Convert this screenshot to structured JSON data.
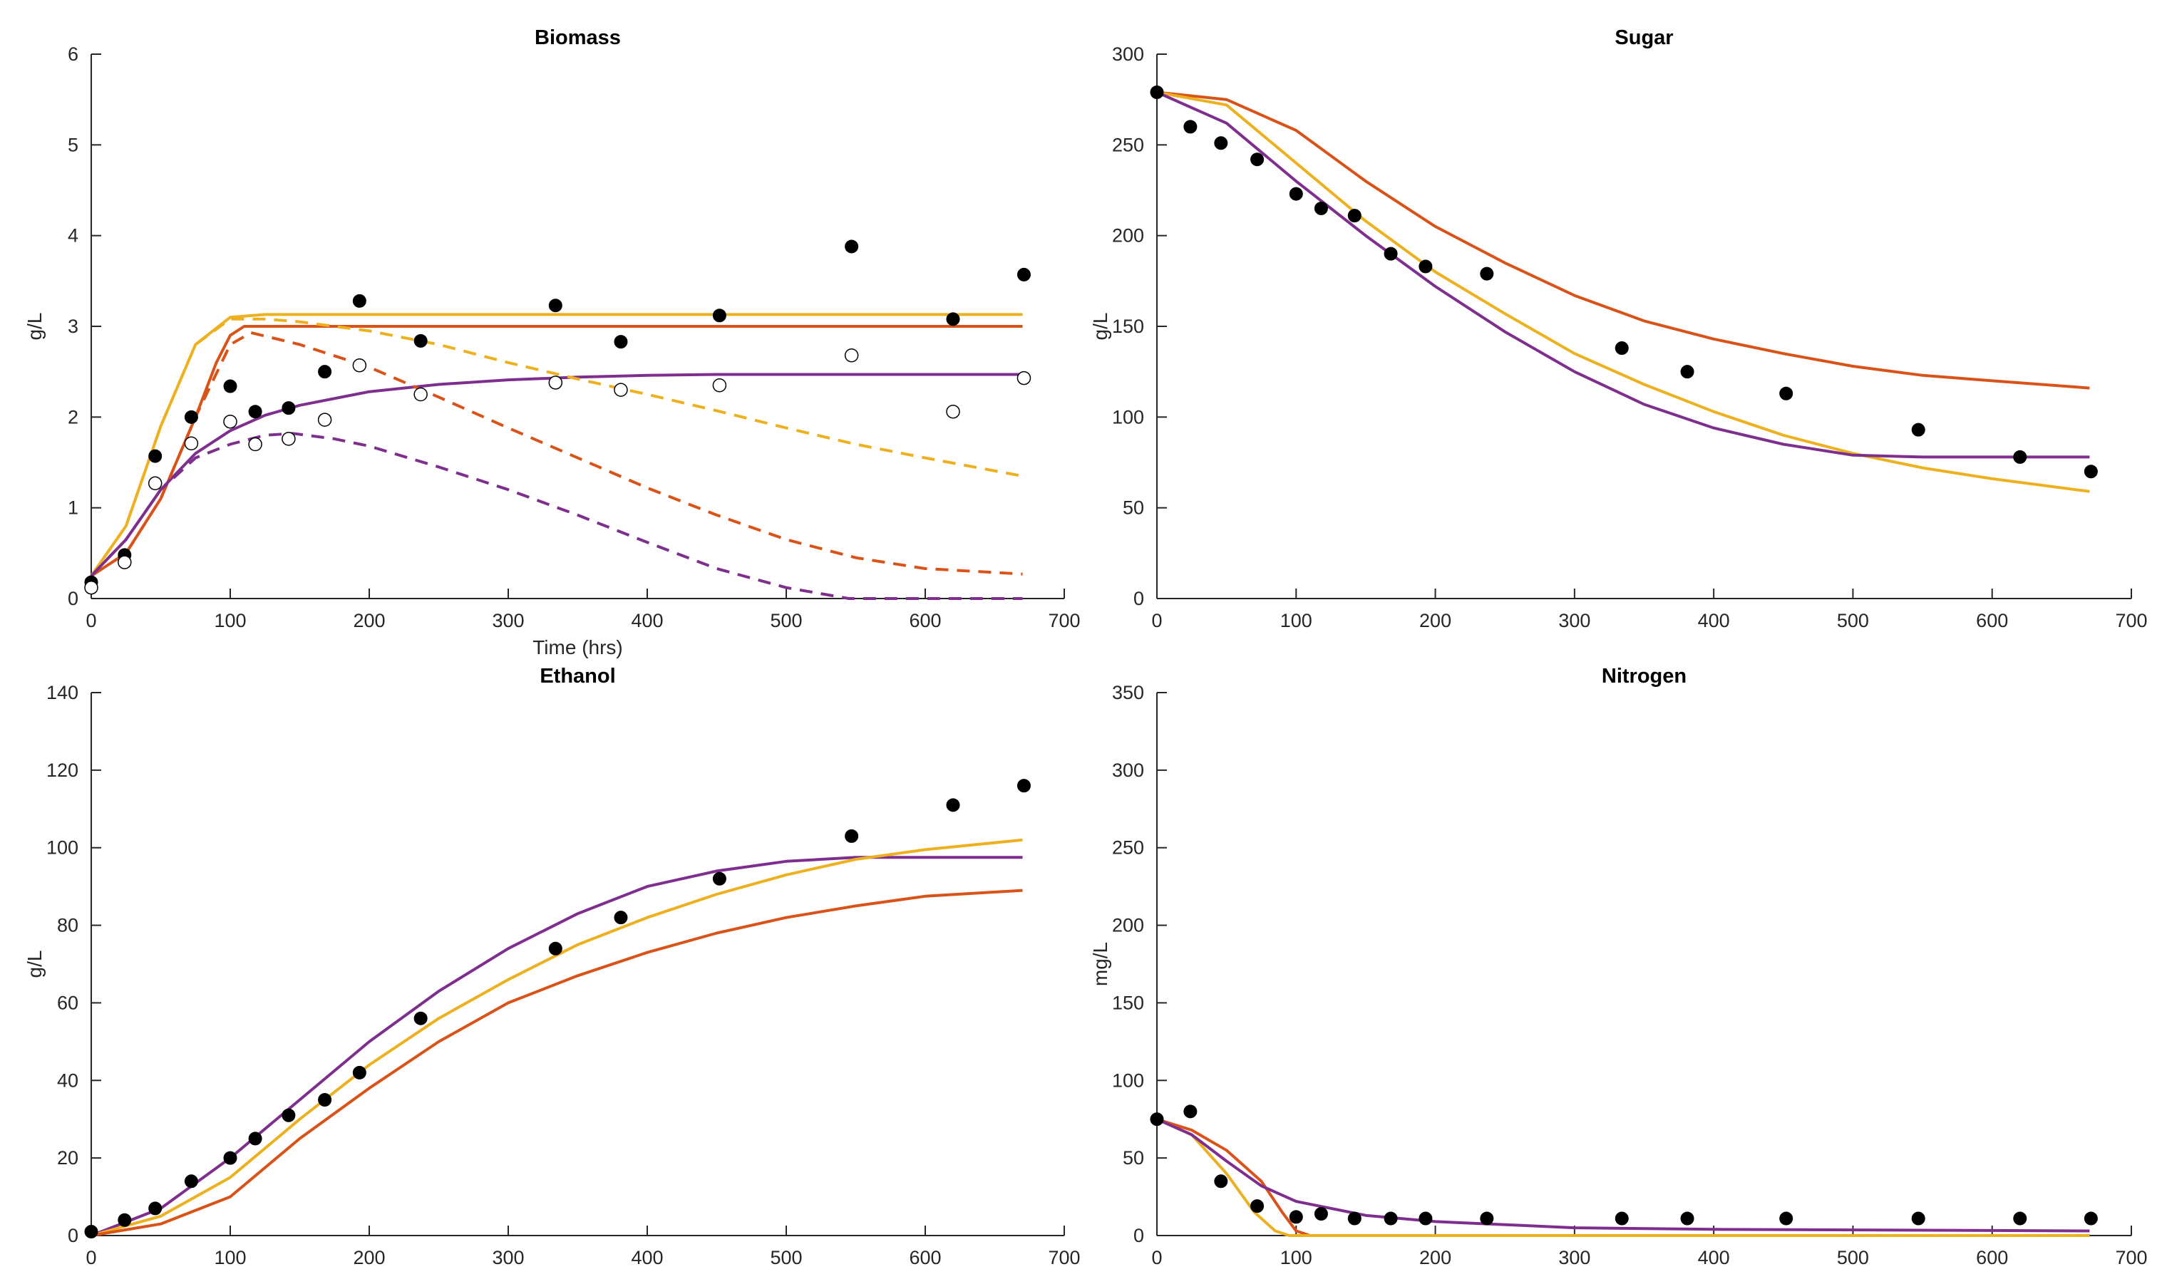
{
  "colors": {
    "yellow": "#EDB120",
    "orange": "#D95319",
    "purple": "#7E2F8E",
    "points": "#000000"
  },
  "chart_data": [
    {
      "type": "line",
      "title": "Biomass",
      "xlabel": "Time (hrs)",
      "ylabel": "g/L",
      "xlim": [
        0,
        700
      ],
      "ylim": [
        0,
        6
      ],
      "xticks": [
        0,
        100,
        200,
        300,
        400,
        500,
        600,
        700
      ],
      "yticks": [
        0,
        1,
        2,
        3,
        4,
        5,
        6
      ],
      "points": [
        {
          "name": "measured-filled",
          "filled": true,
          "x": [
            0,
            24,
            46,
            72,
            100,
            118,
            142,
            168,
            193,
            237,
            334,
            381,
            452,
            547,
            620,
            671
          ],
          "y": [
            0.18,
            0.48,
            1.57,
            2.0,
            2.34,
            2.06,
            2.1,
            2.5,
            3.28,
            2.84,
            3.23,
            2.83,
            3.12,
            3.88,
            3.08,
            3.57
          ]
        },
        {
          "name": "measured-open",
          "filled": false,
          "x": [
            0,
            24,
            46,
            72,
            100,
            118,
            142,
            168,
            193,
            237,
            334,
            381,
            452,
            547,
            620,
            671
          ],
          "y": [
            0.12,
            0.4,
            1.27,
            1.71,
            1.95,
            1.7,
            1.76,
            1.97,
            2.57,
            2.25,
            2.38,
            2.3,
            2.35,
            2.68,
            2.06,
            2.43
          ]
        }
      ],
      "series": [
        {
          "name": "yellow-solid",
          "color": "yellow",
          "dash": false,
          "x": [
            0,
            25,
            50,
            75,
            100,
            125,
            150,
            200,
            300,
            400,
            500,
            600,
            670
          ],
          "y": [
            0.25,
            0.8,
            1.9,
            2.8,
            3.1,
            3.13,
            3.13,
            3.13,
            3.13,
            3.13,
            3.13,
            3.13,
            3.13
          ]
        },
        {
          "name": "orange-solid",
          "color": "orange",
          "dash": false,
          "x": [
            0,
            25,
            50,
            75,
            90,
            100,
            110,
            125,
            150,
            200,
            300,
            400,
            500,
            600,
            670
          ],
          "y": [
            0.25,
            0.5,
            1.1,
            2.0,
            2.6,
            2.9,
            3.0,
            3.0,
            3.0,
            3.0,
            3.0,
            3.0,
            3.0,
            3.0,
            3.0
          ]
        },
        {
          "name": "purple-solid",
          "color": "purple",
          "dash": false,
          "x": [
            0,
            25,
            50,
            75,
            100,
            125,
            150,
            200,
            250,
            300,
            350,
            400,
            450,
            500,
            550,
            600,
            670
          ],
          "y": [
            0.25,
            0.65,
            1.2,
            1.6,
            1.85,
            2.02,
            2.13,
            2.28,
            2.36,
            2.41,
            2.44,
            2.46,
            2.47,
            2.47,
            2.47,
            2.47,
            2.47
          ]
        },
        {
          "name": "yellow-dashed",
          "color": "yellow",
          "dash": true,
          "x": [
            0,
            25,
            50,
            75,
            100,
            125,
            150,
            200,
            250,
            300,
            350,
            400,
            450,
            500,
            550,
            600,
            670
          ],
          "y": [
            0.25,
            0.8,
            1.9,
            2.8,
            3.08,
            3.08,
            3.05,
            2.95,
            2.8,
            2.6,
            2.42,
            2.25,
            2.07,
            1.88,
            1.7,
            1.55,
            1.35
          ]
        },
        {
          "name": "orange-dashed",
          "color": "orange",
          "dash": true,
          "x": [
            0,
            25,
            50,
            75,
            100,
            115,
            150,
            200,
            250,
            300,
            350,
            400,
            450,
            500,
            550,
            600,
            670
          ],
          "y": [
            0.25,
            0.5,
            1.1,
            2.0,
            2.8,
            2.93,
            2.8,
            2.55,
            2.22,
            1.88,
            1.55,
            1.22,
            0.92,
            0.65,
            0.45,
            0.33,
            0.27
          ]
        },
        {
          "name": "purple-dashed",
          "color": "purple",
          "dash": true,
          "x": [
            0,
            25,
            50,
            75,
            100,
            125,
            145,
            175,
            200,
            250,
            300,
            350,
            400,
            450,
            500,
            545,
            600,
            670
          ],
          "y": [
            0.25,
            0.65,
            1.2,
            1.55,
            1.7,
            1.8,
            1.82,
            1.76,
            1.68,
            1.45,
            1.2,
            0.92,
            0.62,
            0.33,
            0.12,
            0,
            0,
            0
          ]
        }
      ]
    },
    {
      "type": "line",
      "title": "Sugar",
      "xlabel": "",
      "ylabel": "g/L",
      "xlim": [
        0,
        700
      ],
      "ylim": [
        0,
        300
      ],
      "xticks": [
        0,
        100,
        200,
        300,
        400,
        500,
        600,
        700
      ],
      "yticks": [
        0,
        50,
        100,
        150,
        200,
        250,
        300
      ],
      "points": [
        {
          "name": "measured-filled",
          "filled": true,
          "x": [
            0,
            24,
            46,
            72,
            100,
            118,
            142,
            168,
            193,
            237,
            334,
            381,
            452,
            547,
            620,
            671
          ],
          "y": [
            279,
            260,
            251,
            242,
            223,
            215,
            211,
            190,
            183,
            179,
            138,
            125,
            113,
            93,
            78,
            70
          ]
        }
      ],
      "series": [
        {
          "name": "orange-solid",
          "color": "orange",
          "dash": false,
          "x": [
            0,
            50,
            100,
            150,
            200,
            250,
            300,
            350,
            400,
            450,
            500,
            550,
            600,
            670
          ],
          "y": [
            279,
            275,
            258,
            230,
            205,
            185,
            167,
            153,
            143,
            135,
            128,
            123,
            120,
            116
          ]
        },
        {
          "name": "yellow-solid",
          "color": "yellow",
          "dash": false,
          "x": [
            0,
            50,
            100,
            150,
            200,
            250,
            300,
            350,
            400,
            450,
            500,
            550,
            600,
            670
          ],
          "y": [
            279,
            272,
            240,
            208,
            180,
            157,
            135,
            118,
            103,
            90,
            80,
            72,
            66,
            59
          ]
        },
        {
          "name": "purple-solid",
          "color": "purple",
          "dash": false,
          "x": [
            0,
            50,
            100,
            150,
            200,
            250,
            300,
            350,
            400,
            450,
            500,
            550,
            600,
            670
          ],
          "y": [
            279,
            262,
            230,
            200,
            172,
            147,
            125,
            107,
            94,
            85,
            79,
            78,
            78,
            78
          ]
        }
      ]
    },
    {
      "type": "line",
      "title": "Ethanol",
      "xlabel": "",
      "ylabel": "g/L",
      "xlim": [
        0,
        700
      ],
      "ylim": [
        0,
        140
      ],
      "xticks": [
        0,
        100,
        200,
        300,
        400,
        500,
        600,
        700
      ],
      "yticks": [
        0,
        20,
        40,
        60,
        80,
        100,
        120,
        140
      ],
      "points": [
        {
          "name": "measured-filled",
          "filled": true,
          "x": [
            0,
            24,
            46,
            72,
            100,
            118,
            142,
            168,
            193,
            237,
            334,
            381,
            452,
            547,
            620,
            671
          ],
          "y": [
            1,
            4,
            7,
            14,
            20,
            25,
            31,
            35,
            42,
            56,
            74,
            82,
            92,
            103,
            111,
            116
          ]
        }
      ],
      "series": [
        {
          "name": "purple-solid",
          "color": "purple",
          "dash": false,
          "x": [
            0,
            50,
            100,
            150,
            200,
            250,
            300,
            350,
            400,
            450,
            500,
            550,
            600,
            670
          ],
          "y": [
            0,
            7,
            20,
            35,
            50,
            63,
            74,
            83,
            90,
            94,
            96.5,
            97.5,
            97.5,
            97.5
          ]
        },
        {
          "name": "yellow-solid",
          "color": "yellow",
          "dash": false,
          "x": [
            0,
            50,
            100,
            150,
            200,
            250,
            300,
            350,
            400,
            450,
            500,
            550,
            600,
            670
          ],
          "y": [
            0,
            5,
            15,
            30,
            44,
            56,
            66,
            75,
            82,
            88,
            93,
            97,
            99.5,
            102
          ]
        },
        {
          "name": "orange-solid",
          "color": "orange",
          "dash": false,
          "x": [
            0,
            50,
            100,
            150,
            200,
            250,
            300,
            350,
            400,
            450,
            500,
            550,
            600,
            670
          ],
          "y": [
            0,
            3,
            10,
            25,
            38,
            50,
            60,
            67,
            73,
            78,
            82,
            85,
            87.5,
            89
          ]
        }
      ]
    },
    {
      "type": "line",
      "title": "Nitrogen",
      "xlabel": "",
      "ylabel": "mg/L",
      "xlim": [
        0,
        700
      ],
      "ylim": [
        0,
        350
      ],
      "xticks": [
        0,
        100,
        200,
        300,
        400,
        500,
        600,
        700
      ],
      "yticks": [
        0,
        50,
        100,
        150,
        200,
        250,
        300,
        350
      ],
      "points": [
        {
          "name": "measured-filled",
          "filled": true,
          "x": [
            0,
            24,
            46,
            72,
            100,
            118,
            142,
            168,
            193,
            237,
            334,
            381,
            452,
            547,
            620,
            671
          ],
          "y": [
            75,
            80,
            35,
            19,
            12,
            14,
            11,
            11,
            11,
            11,
            11,
            11,
            11,
            11,
            11,
            11
          ]
        }
      ],
      "series": [
        {
          "name": "orange-solid",
          "color": "orange",
          "dash": false,
          "x": [
            0,
            25,
            50,
            75,
            90,
            100,
            110,
            200,
            400,
            670
          ],
          "y": [
            75,
            68,
            55,
            35,
            15,
            3,
            0,
            0,
            0,
            0
          ]
        },
        {
          "name": "yellow-solid",
          "color": "yellow",
          "dash": false,
          "x": [
            0,
            25,
            50,
            70,
            85,
            95,
            200,
            400,
            670
          ],
          "y": [
            75,
            65,
            40,
            15,
            3,
            0,
            0,
            0,
            0
          ]
        },
        {
          "name": "purple-solid",
          "color": "purple",
          "dash": false,
          "x": [
            0,
            25,
            50,
            75,
            100,
            150,
            200,
            300,
            400,
            670
          ],
          "y": [
            75,
            65,
            48,
            32,
            22,
            13,
            9,
            5,
            4,
            3
          ]
        }
      ]
    }
  ]
}
